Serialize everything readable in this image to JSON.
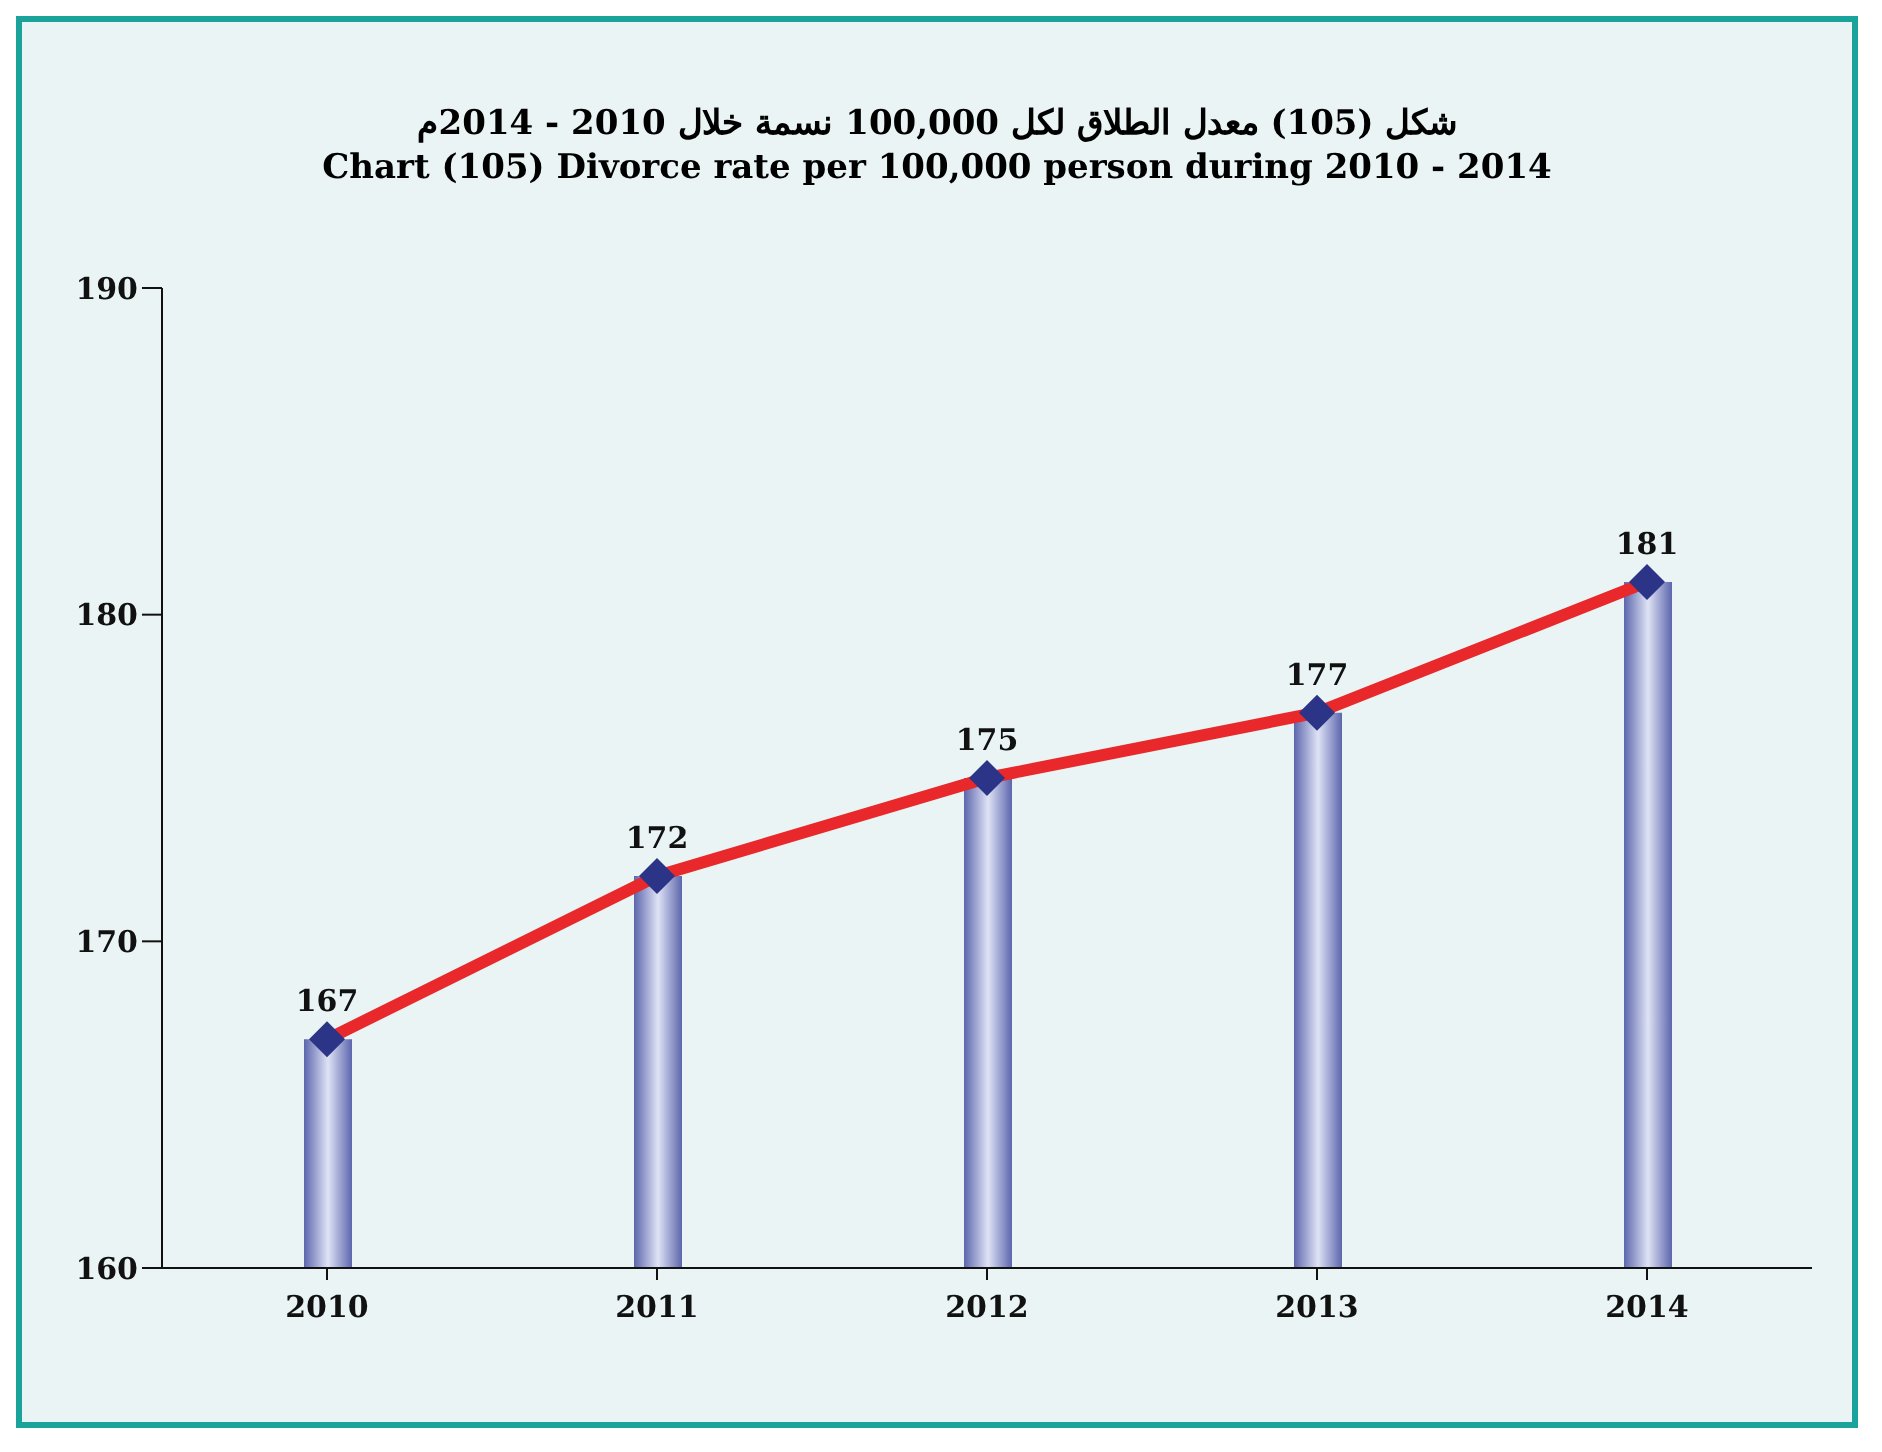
{
  "chart_data": {
    "type": "bar",
    "title": "شكل (105) معدل الطلاق لكل 100,000 نسمة خلال 2010 - 2014م",
    "subtitle": "Chart (105) Divorce rate per 100,000 person during 2010 - 2014",
    "categories": [
      "2010",
      "2011",
      "2012",
      "2013",
      "2014"
    ],
    "series": [
      {
        "color": "#5c66ad",
        "values": [
          167,
          172,
          175,
          177,
          181
        ]
      },
      {
        "type": "line",
        "color": "#e8282a",
        "values": [
          167,
          172,
          175,
          177,
          181
        ],
        "marker": "diamond",
        "data_labels": true
      }
    ],
    "ylim": [
      160,
      190
    ],
    "yticks": [
      160,
      170,
      180,
      190
    ],
    "grid": false,
    "legend": false
  }
}
